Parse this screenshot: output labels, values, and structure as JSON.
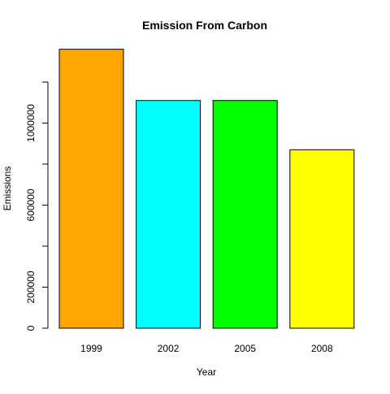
{
  "chart_data": {
    "type": "bar",
    "title": "Emission From Carbon",
    "xlabel": "Year",
    "ylabel": "Emissions",
    "categories": [
      "1999",
      "2002",
      "2005",
      "2008"
    ],
    "values": [
      1360000,
      1110000,
      1110000,
      870000
    ],
    "colors": [
      "#FFA500",
      "#00FFFF",
      "#00FF00",
      "#FFFF00"
    ],
    "ylim": [
      0,
      1400000
    ],
    "y_ticks": [
      0,
      200000,
      400000,
      600000,
      800000,
      1000000,
      1200000
    ],
    "y_tick_labels": [
      "0",
      "200000",
      "",
      "600000",
      "",
      "1000000",
      ""
    ],
    "grid": false,
    "legend": "none"
  }
}
